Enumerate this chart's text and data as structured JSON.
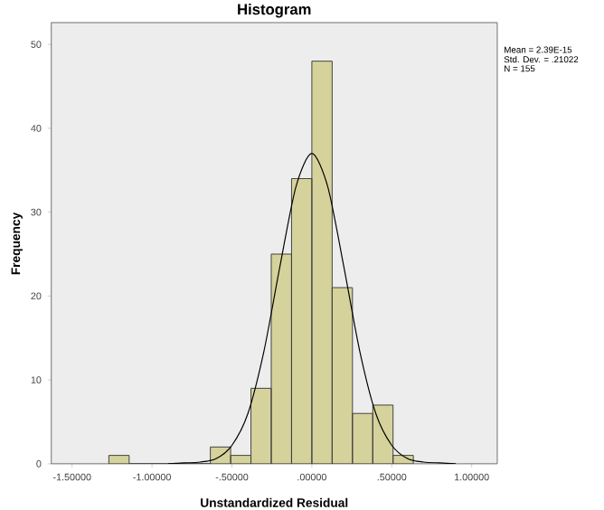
{
  "chart_data": {
    "type": "histogram",
    "title": "Histogram",
    "xlabel": "Unstandardized Residual",
    "ylabel": "Frequency",
    "bins": [
      -1.27,
      -1.143,
      -1.016,
      -0.889,
      -0.762,
      -0.635,
      -0.508,
      -0.381,
      -0.254,
      -0.127,
      0,
      0.127,
      0.254,
      0.381,
      0.508,
      0.635
    ],
    "values": [
      1,
      0,
      0,
      0,
      0,
      2,
      1,
      9,
      25,
      34,
      48,
      21,
      6,
      7,
      1
    ],
    "color": "#d6d29c",
    "series": [
      {
        "type": "line",
        "color": "#000000",
        "x": [
          -0.9,
          -0.8,
          -0.7,
          -0.6,
          -0.5,
          -0.4,
          -0.3,
          -0.2,
          -0.1,
          0,
          0.1,
          0.2,
          0.3,
          0.4,
          0.5,
          0.6,
          0.7,
          0.8,
          0.9
        ],
        "values": [
          0,
          0.1,
          0.2,
          0.6,
          2.2,
          6,
          13.4,
          23.5,
          33,
          37,
          33,
          23.5,
          13.4,
          6,
          2.2,
          0.6,
          0.2,
          0.1,
          0
        ]
      }
    ],
    "xlim": [
      -1.63,
      1.16
    ],
    "ylim": [
      0,
      52.6
    ],
    "xticks": [
      {
        "value": -1.5,
        "label": "-1.50000"
      },
      {
        "value": -1.0,
        "label": "-1.00000"
      },
      {
        "value": -0.5,
        "label": "-.50000"
      },
      {
        "value": 0,
        "label": ".00000"
      },
      {
        "value": 0.5,
        "label": ".50000"
      },
      {
        "value": 1.0,
        "label": "1.00000"
      }
    ],
    "yticks": [
      0,
      10,
      20,
      30,
      40,
      50
    ],
    "annotations": [
      "Mean = 2.39E-15",
      "Std. Dev. = .21022",
      "N = 155"
    ]
  }
}
